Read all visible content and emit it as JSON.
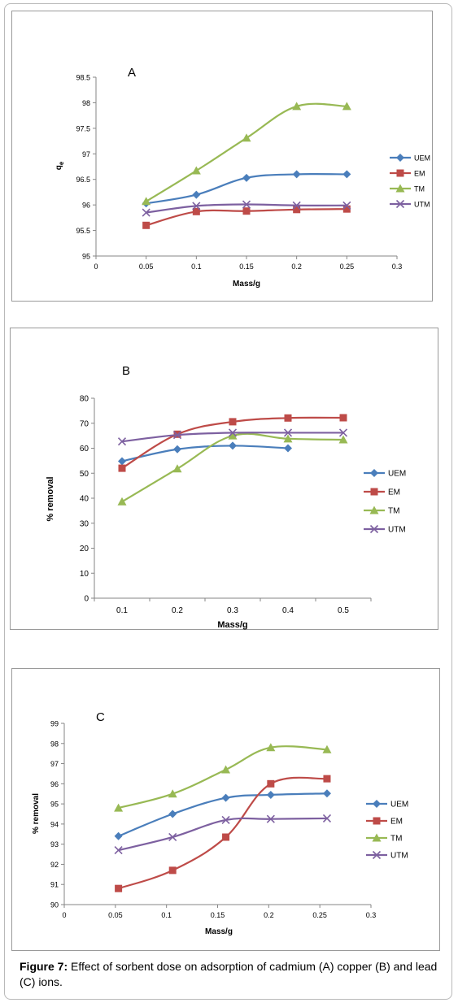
{
  "caption": {
    "label": "Figure 7:",
    "text": " Effect of sorbent dose on adsorption of cadmium (A) copper (B) and lead (C) ions."
  },
  "chart_data": [
    {
      "type": "line",
      "panel_letter": "A",
      "xlabel": "Mass/g",
      "ylabel": "q",
      "ylabel_sub": "e",
      "xlim": [
        0,
        0.3
      ],
      "ylim": [
        95,
        98.5
      ],
      "x_ticks": [
        "0",
        "0.05",
        "0.1",
        "0.15",
        "0.2",
        "0.25",
        "0.3"
      ],
      "y_ticks": [
        "95",
        "95.5",
        "96",
        "96.5",
        "97",
        "97.5",
        "98",
        "98.5"
      ],
      "legend_position": "right",
      "series": [
        {
          "name": "UEM",
          "color": "#4a7ebb",
          "marker": "diamond",
          "x": [
            0.05,
            0.1,
            0.15,
            0.2,
            0.25
          ],
          "y": [
            96.03,
            96.2,
            96.53,
            96.6,
            96.6
          ]
        },
        {
          "name": "EM",
          "color": "#be4b48",
          "marker": "square",
          "x": [
            0.05,
            0.1,
            0.15,
            0.2,
            0.25
          ],
          "y": [
            95.6,
            95.87,
            95.88,
            95.91,
            95.92
          ]
        },
        {
          "name": "TM",
          "color": "#98b954",
          "marker": "triangle",
          "x": [
            0.05,
            0.1,
            0.15,
            0.2,
            0.25
          ],
          "y": [
            96.07,
            96.67,
            97.31,
            97.93,
            97.93
          ]
        },
        {
          "name": "UTM",
          "color": "#7d60a0",
          "marker": "x",
          "x": [
            0.05,
            0.1,
            0.15,
            0.2,
            0.25
          ],
          "y": [
            95.85,
            95.98,
            96.01,
            95.99,
            95.99
          ]
        }
      ]
    },
    {
      "type": "line",
      "panel_letter": "B",
      "xlabel": "Mass/g",
      "ylabel": "% removal",
      "categories": [
        "0.1",
        "0.2",
        "0.3",
        "0.4",
        "0.5"
      ],
      "ylim": [
        0,
        80
      ],
      "y_ticks": [
        "0",
        "10",
        "20",
        "30",
        "40",
        "50",
        "60",
        "70",
        "80"
      ],
      "legend_position": "right",
      "series": [
        {
          "name": "UEM",
          "color": "#4a7ebb",
          "marker": "diamond",
          "values": [
            54.8,
            59.6,
            61,
            60,
            null
          ]
        },
        {
          "name": "EM",
          "color": "#be4b48",
          "marker": "square",
          "values": [
            52,
            65.6,
            70.6,
            72.1,
            72.2
          ]
        },
        {
          "name": "TM",
          "color": "#98b954",
          "marker": "triangle",
          "values": [
            38.6,
            51.8,
            65,
            63.8,
            63.4
          ]
        },
        {
          "name": "UTM",
          "color": "#7d60a0",
          "marker": "x",
          "values": [
            62.7,
            65.3,
            66.2,
            66.2,
            66.2
          ]
        }
      ]
    },
    {
      "type": "line",
      "panel_letter": "C",
      "xlabel": "Mass/g",
      "ylabel": "% removal",
      "xlim": [
        0,
        0.3
      ],
      "ylim": [
        90,
        99
      ],
      "x_ticks": [
        "0",
        "0.05",
        "0.1",
        "0.15",
        "0.2",
        "0.25",
        "0.3"
      ],
      "y_ticks": [
        "90",
        "91",
        "92",
        "93",
        "94",
        "95",
        "96",
        "97",
        "98",
        "99"
      ],
      "legend_position": "right",
      "series": [
        {
          "name": "UEM",
          "color": "#4a7ebb",
          "marker": "diamond",
          "x": [
            0.053,
            0.106,
            0.158,
            0.202,
            0.257
          ],
          "y": [
            93.4,
            94.5,
            95.3,
            95.45,
            95.52
          ]
        },
        {
          "name": "EM",
          "color": "#be4b48",
          "marker": "square",
          "x": [
            0.053,
            0.106,
            0.158,
            0.202,
            0.257
          ],
          "y": [
            90.8,
            91.7,
            93.35,
            96.0,
            96.25
          ]
        },
        {
          "name": "TM",
          "color": "#98b954",
          "marker": "triangle",
          "x": [
            0.053,
            0.106,
            0.158,
            0.202,
            0.257
          ],
          "y": [
            94.8,
            95.5,
            96.7,
            97.8,
            97.7
          ]
        },
        {
          "name": "UTM",
          "color": "#7d60a0",
          "marker": "x",
          "x": [
            0.053,
            0.106,
            0.158,
            0.202,
            0.257
          ],
          "y": [
            92.7,
            93.35,
            94.2,
            94.25,
            94.28
          ]
        }
      ]
    }
  ]
}
